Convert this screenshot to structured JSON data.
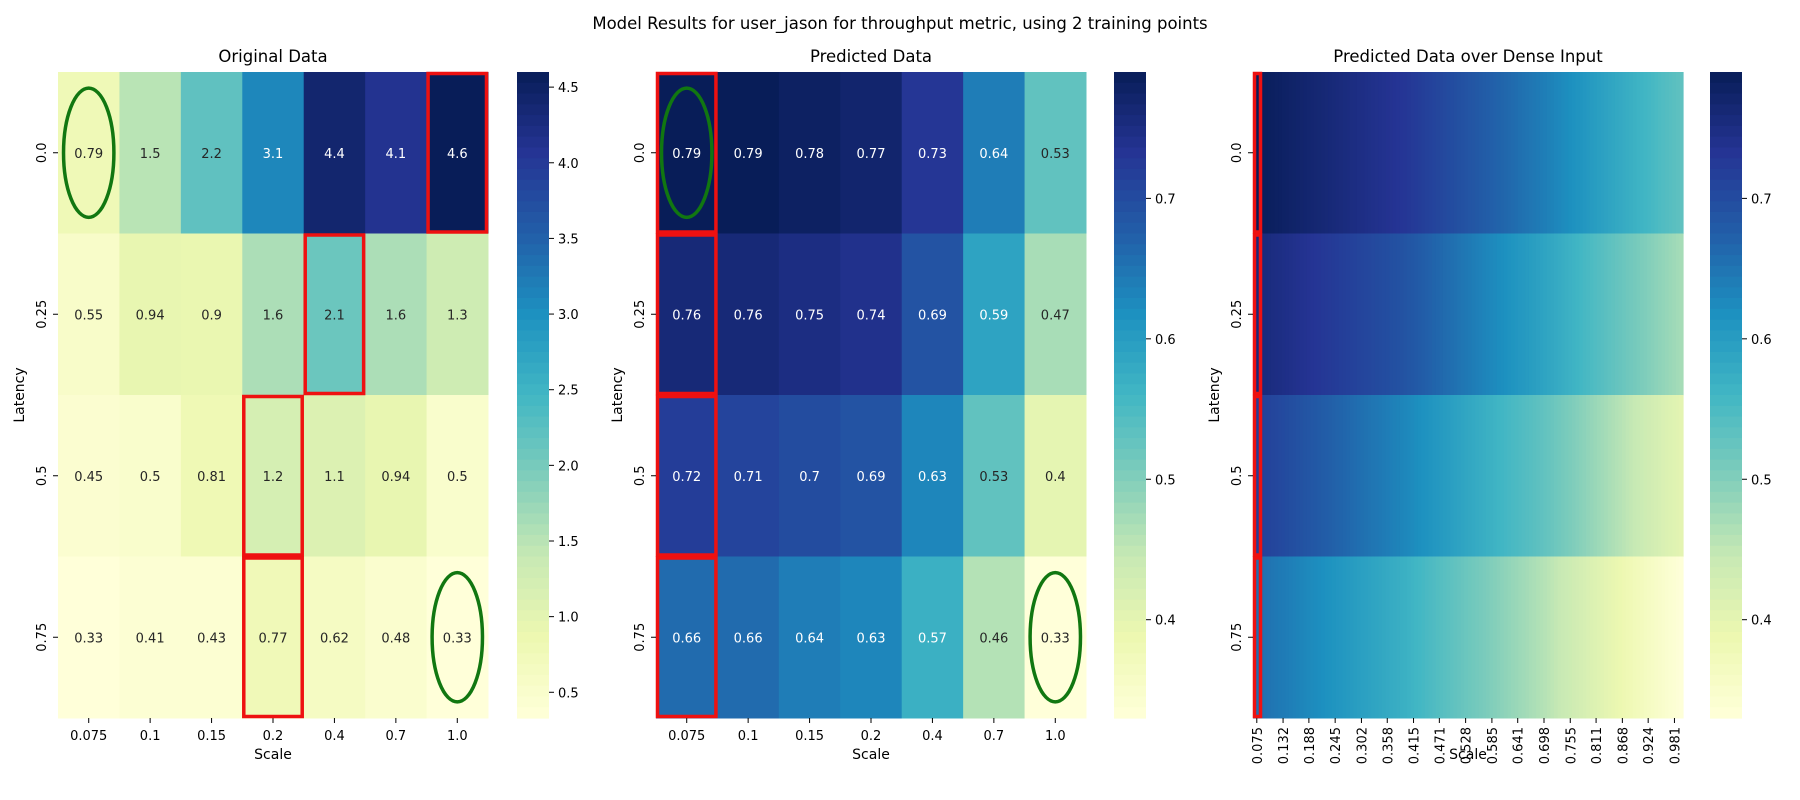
{
  "suptitle": "Model Results for user_jason for throughput metric, using 2 training points",
  "palette": [
    "#ffffd9",
    "#edf8b1",
    "#c7e9b4",
    "#7fcdbb",
    "#41b6c4",
    "#1d91c0",
    "#225ea8",
    "#253494",
    "#081d58"
  ],
  "highlight_colors": {
    "box": "#ee1111",
    "ellipse": "#117711"
  },
  "chart_data": [
    {
      "type": "heatmap",
      "title": "Original Data",
      "xlabel": "Scale",
      "ylabel": "Latency",
      "x_categories": [
        "0.075",
        "0.1",
        "0.15",
        "0.2",
        "0.4",
        "0.7",
        "1.0"
      ],
      "y_categories": [
        "0.0",
        "0.25",
        "0.5",
        "0.75"
      ],
      "values": [
        [
          0.79,
          1.5,
          2.2,
          3.1,
          4.4,
          4.1,
          4.6
        ],
        [
          0.55,
          0.94,
          0.9,
          1.6,
          2.1,
          1.6,
          1.3
        ],
        [
          0.45,
          0.5,
          0.81,
          1.2,
          1.1,
          0.94,
          0.5
        ],
        [
          0.33,
          0.41,
          0.43,
          0.77,
          0.62,
          0.48,
          0.33
        ]
      ],
      "value_labels": [
        [
          "0.79",
          "1.5",
          "2.2",
          "3.1",
          "4.4",
          "4.1",
          "4.6"
        ],
        [
          "0.55",
          "0.94",
          "0.9",
          "1.6",
          "2.1",
          "1.6",
          "1.3"
        ],
        [
          "0.45",
          "0.5",
          "0.81",
          "1.2",
          "1.1",
          "0.94",
          "0.5"
        ],
        [
          "0.33",
          "0.41",
          "0.43",
          "0.77",
          "0.62",
          "0.48",
          "0.33"
        ]
      ],
      "vmin": 0.33,
      "vmax": 4.6,
      "colorbar_ticks": [
        "0.5",
        "1.0",
        "1.5",
        "2.0",
        "2.5",
        "3.0",
        "3.5",
        "4.0",
        "4.5"
      ],
      "highlight_boxes": [
        [
          0,
          6
        ],
        [
          1,
          4
        ],
        [
          2,
          3
        ],
        [
          3,
          3
        ]
      ],
      "highlight_ellipses": [
        [
          0,
          0
        ],
        [
          3,
          6
        ]
      ]
    },
    {
      "type": "heatmap",
      "title": "Predicted Data",
      "xlabel": "Scale",
      "ylabel": "Latency",
      "x_categories": [
        "0.075",
        "0.1",
        "0.15",
        "0.2",
        "0.4",
        "0.7",
        "1.0"
      ],
      "y_categories": [
        "0.0",
        "0.25",
        "0.5",
        "0.75"
      ],
      "values": [
        [
          0.79,
          0.79,
          0.78,
          0.77,
          0.73,
          0.64,
          0.53
        ],
        [
          0.76,
          0.76,
          0.75,
          0.74,
          0.69,
          0.59,
          0.47
        ],
        [
          0.72,
          0.71,
          0.7,
          0.69,
          0.63,
          0.53,
          0.4
        ],
        [
          0.66,
          0.66,
          0.64,
          0.63,
          0.57,
          0.46,
          0.33
        ]
      ],
      "value_labels": [
        [
          "0.79",
          "0.79",
          "0.78",
          "0.77",
          "0.73",
          "0.64",
          "0.53"
        ],
        [
          "0.76",
          "0.76",
          "0.75",
          "0.74",
          "0.69",
          "0.59",
          "0.47"
        ],
        [
          "0.72",
          "0.71",
          "0.7",
          "0.69",
          "0.63",
          "0.53",
          "0.4"
        ],
        [
          "0.66",
          "0.66",
          "0.64",
          "0.63",
          "0.57",
          "0.46",
          "0.33"
        ]
      ],
      "vmin": 0.33,
      "vmax": 0.79,
      "colorbar_ticks": [
        "0.4",
        "0.5",
        "0.6",
        "0.7"
      ],
      "highlight_boxes": [
        [
          0,
          0
        ],
        [
          1,
          0
        ],
        [
          2,
          0
        ],
        [
          3,
          0
        ]
      ],
      "highlight_ellipses": [
        [
          0,
          0
        ],
        [
          3,
          6
        ]
      ]
    },
    {
      "type": "heatmap",
      "title": "Predicted Data over Dense Input",
      "xlabel": "Scale",
      "ylabel": "Latency",
      "x_range": [
        0.075,
        1.0
      ],
      "x_tick_labels": [
        "0.075",
        "0.132",
        "0.188",
        "0.245",
        "0.302",
        "0.358",
        "0.415",
        "0.471",
        "0.528",
        "0.585",
        "0.641",
        "0.698",
        "0.755",
        "0.811",
        "0.868",
        "0.924",
        "0.981"
      ],
      "y_categories": [
        "0.0",
        "0.25",
        "0.5",
        "0.75"
      ],
      "row_profiles": [
        {
          "x": [
            0.075,
            0.4,
            0.7,
            1.0
          ],
          "y": [
            0.79,
            0.73,
            0.64,
            0.53
          ]
        },
        {
          "x": [
            0.075,
            0.4,
            0.7,
            1.0
          ],
          "y": [
            0.76,
            0.69,
            0.59,
            0.47
          ]
        },
        {
          "x": [
            0.075,
            0.4,
            0.7,
            1.0
          ],
          "y": [
            0.72,
            0.63,
            0.53,
            0.4
          ]
        },
        {
          "x": [
            0.075,
            0.4,
            0.7,
            1.0
          ],
          "y": [
            0.66,
            0.57,
            0.46,
            0.33
          ]
        }
      ],
      "vmin": 0.33,
      "vmax": 0.79,
      "colorbar_ticks": [
        "0.4",
        "0.5",
        "0.6",
        "0.7"
      ],
      "highlight_column_x": 0.075
    }
  ]
}
